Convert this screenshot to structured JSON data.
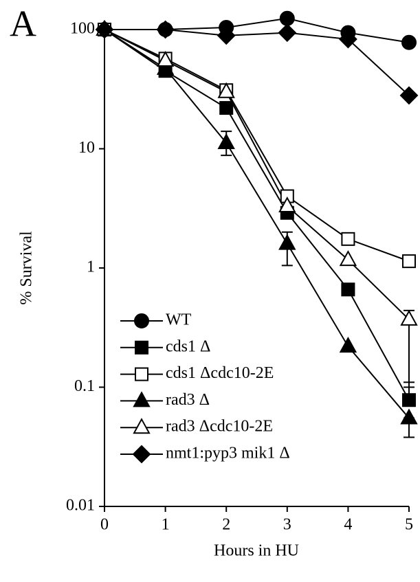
{
  "chart_data": {
    "type": "line",
    "panel_label": "A",
    "x_label": "Hours in HU",
    "y_label": "% Survival",
    "log_y": true,
    "x": [
      0,
      1,
      2,
      3,
      4,
      5
    ],
    "xlim": [
      0,
      5
    ],
    "xticks": [
      0,
      1,
      2,
      3,
      4,
      5
    ],
    "ylim": [
      0.01,
      100
    ],
    "yticks": [
      0.01,
      0.1,
      1,
      10,
      100
    ],
    "legend": "lower left",
    "series": [
      {
        "name": "WT",
        "color": "#000000",
        "marker": "circle",
        "filled": true,
        "values": [
          100,
          100,
          104,
          124,
          94,
          78
        ],
        "errors": [
          null,
          null,
          null,
          null,
          null,
          null
        ]
      },
      {
        "name": "cds1 Δ",
        "color": "#000000",
        "marker": "square",
        "filled": true,
        "values": [
          100,
          45,
          22,
          2.9,
          0.66,
          0.078
        ],
        "errors": [
          null,
          null,
          null,
          null,
          null,
          [
            0.078,
            0.11
          ]
        ]
      },
      {
        "name": "cds1 Δcdc10-2E",
        "color": "#000000",
        "marker": "square",
        "filled": false,
        "values": [
          100,
          57,
          31,
          4.0,
          1.75,
          1.14
        ],
        "errors": [
          null,
          null,
          null,
          null,
          null,
          null
        ]
      },
      {
        "name": "rad3 Δ",
        "color": "#000000",
        "marker": "triangle",
        "filled": true,
        "values": [
          100,
          47,
          11.2,
          1.6,
          0.22,
          0.055
        ],
        "errors": [
          null,
          null,
          [
            8.8,
            14
          ],
          [
            1.05,
            2.0
          ],
          null,
          [
            0.038,
            0.055
          ]
        ]
      },
      {
        "name": "rad3 Δcdc10-2E",
        "color": "#000000",
        "marker": "triangle",
        "filled": false,
        "values": [
          100,
          55,
          30,
          3.3,
          1.17,
          0.37
        ],
        "errors": [
          null,
          null,
          null,
          null,
          null,
          [
            0.1,
            0.44
          ]
        ]
      },
      {
        "name": "nmt1:pyp3 mik1 Δ",
        "color": "#000000",
        "marker": "diamond",
        "filled": true,
        "values": [
          100,
          100,
          89,
          94,
          83,
          28
        ],
        "errors": [
          null,
          null,
          null,
          null,
          null,
          null
        ]
      }
    ]
  }
}
